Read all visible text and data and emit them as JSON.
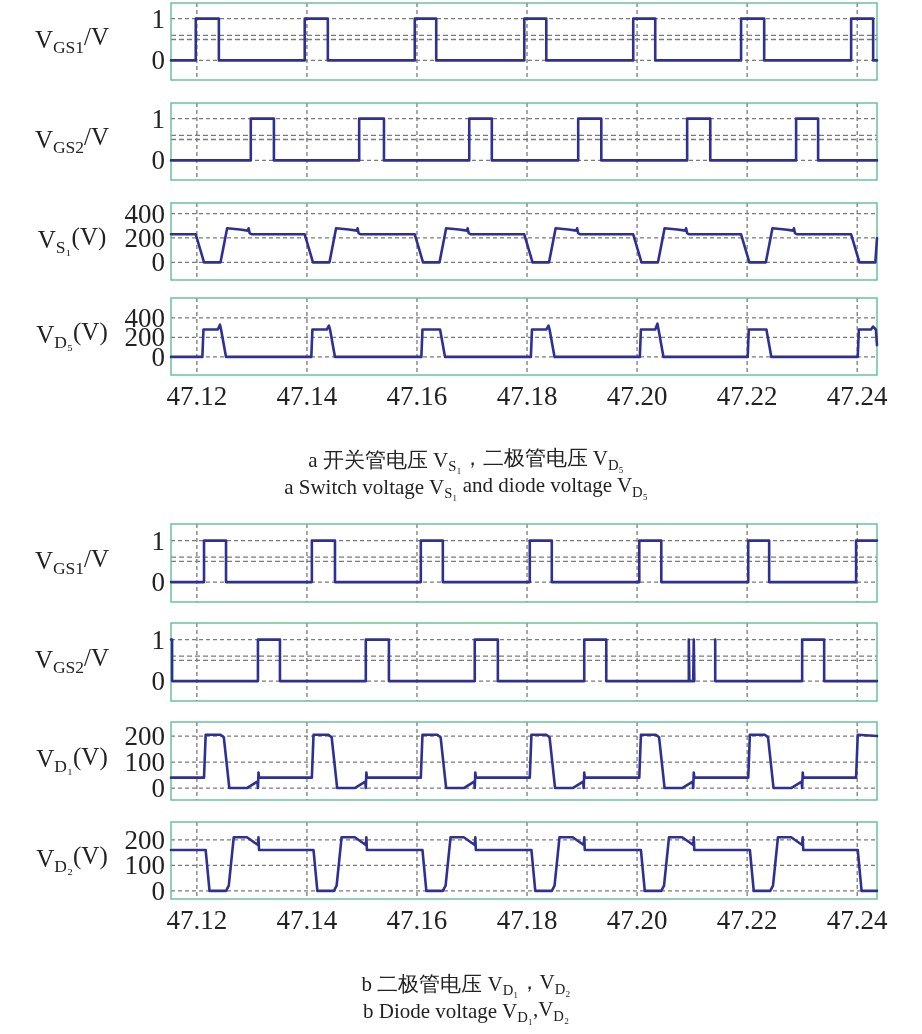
{
  "chart_data": [
    {
      "type": "line",
      "ylabel": "V$_{GS1}$/V",
      "xlim": [
        47.1153,
        47.2436
      ],
      "xticks": [
        47.12,
        47.14,
        47.16,
        47.18,
        47.2,
        47.22,
        47.24
      ],
      "ylim": [
        -0.47,
        1.375
      ],
      "yticks": [
        0,
        1
      ],
      "ref_lines": [
        {
          "axis": "y",
          "value": 0.5,
          "line_style": "dashed"
        },
        {
          "axis": "y",
          "value": 0.6,
          "line_style": "dashed"
        }
      ],
      "grid": true,
      "tick_labels": "y",
      "series": [
        {
          "color": "#2e3192",
          "x": [
            47.1153,
            47.1198,
            47.1198,
            47.124,
            47.124,
            47.1396,
            47.1396,
            47.1438,
            47.1438,
            47.1596,
            47.1596,
            47.1635,
            47.1635,
            47.1795,
            47.1795,
            47.1835,
            47.1835,
            47.1993,
            47.1993,
            47.2033,
            47.2033,
            47.2189,
            47.2189,
            47.2231,
            47.2231,
            47.2389,
            47.2389,
            47.2429,
            47.2429,
            47.2436
          ],
          "values": [
            0,
            0,
            1,
            1,
            0,
            0,
            1,
            1,
            0,
            0,
            1,
            1,
            0,
            0,
            1,
            1,
            0,
            0,
            1,
            1,
            0,
            0,
            1,
            1,
            0,
            0,
            1,
            1,
            0,
            0
          ]
        }
      ]
    },
    {
      "type": "line",
      "ylabel": "V$_{GS2}$/V",
      "xlim": [
        47.1153,
        47.2436
      ],
      "xticks": [
        47.12,
        47.14,
        47.16,
        47.18,
        47.2,
        47.22,
        47.24
      ],
      "ylim": [
        -0.47,
        1.375
      ],
      "yticks": [
        0,
        1
      ],
      "ref_lines": [
        {
          "axis": "y",
          "value": 0.5,
          "line_style": "dashed"
        },
        {
          "axis": "y",
          "value": 0.6,
          "line_style": "dashed"
        }
      ],
      "grid": true,
      "tick_labels": "y",
      "series": [
        {
          "color": "#2e3192",
          "x": [
            47.1153,
            47.1298,
            47.1298,
            47.134,
            47.134,
            47.1495,
            47.1495,
            47.154,
            47.154,
            47.1695,
            47.1695,
            47.1736,
            47.1736,
            47.1893,
            47.1893,
            47.1935,
            47.1935,
            47.2091,
            47.2091,
            47.2133,
            47.2133,
            47.2289,
            47.2289,
            47.2329,
            47.2329,
            47.2436
          ],
          "values": [
            0,
            0,
            1,
            1,
            0,
            0,
            1,
            1,
            0,
            0,
            1,
            1,
            0,
            0,
            1,
            1,
            0,
            0,
            1,
            1,
            0,
            0,
            1,
            1,
            0,
            0
          ]
        }
      ]
    },
    {
      "type": "line",
      "ylabel": "V$_{S₁}$(V)",
      "xlim": [
        47.1153,
        47.2436
      ],
      "xticks": [
        47.12,
        47.14,
        47.16,
        47.18,
        47.2,
        47.22,
        47.24
      ],
      "ylim": [
        -145,
        487
      ],
      "yticks": [
        0,
        200,
        400
      ],
      "grid": true,
      "tick_labels": "y",
      "series": [
        {
          "color": "#2e3192",
          "x": [
            47.1153,
            47.1198,
            47.1213,
            47.1243,
            47.1255,
            47.1278,
            47.1293,
            47.1294,
            47.1296,
            47.13,
            47.1396,
            47.1411,
            47.1441,
            47.1453,
            47.1476,
            47.1491,
            47.1492,
            47.1494,
            47.1498,
            47.1596,
            47.1611,
            47.1641,
            47.1653,
            47.1676,
            47.1691,
            47.1692,
            47.1694,
            47.1698,
            47.1795,
            47.181,
            47.184,
            47.1852,
            47.1875,
            47.189,
            47.1891,
            47.1893,
            47.1897,
            47.1993,
            47.2008,
            47.2038,
            47.205,
            47.2073,
            47.2088,
            47.2089,
            47.2091,
            47.2095,
            47.2189,
            47.2204,
            47.2234,
            47.2246,
            47.2269,
            47.2284,
            47.2285,
            47.2287,
            47.2291,
            47.2389,
            47.2404,
            47.2433,
            47.2436
          ],
          "values": [
            230,
            230,
            0,
            0,
            280,
            270,
            260,
            280,
            240,
            230,
            230,
            0,
            0,
            280,
            270,
            260,
            280,
            240,
            230,
            230,
            0,
            0,
            280,
            270,
            260,
            280,
            240,
            230,
            230,
            0,
            0,
            280,
            270,
            260,
            280,
            240,
            230,
            230,
            0,
            0,
            280,
            270,
            260,
            280,
            240,
            230,
            230,
            0,
            0,
            280,
            270,
            260,
            280,
            240,
            230,
            230,
            0,
            0,
            200
          ]
        }
      ]
    },
    {
      "type": "line",
      "ylabel": "V$_{D₅}$(V)",
      "xlim": [
        47.1153,
        47.2436
      ],
      "xticks": [
        47.12,
        47.14,
        47.16,
        47.18,
        {
          "value": 47.2,
          "label": "47.20"
        },
        47.22,
        47.24
      ],
      "ylim": [
        -185,
        603
      ],
      "yticks": [
        0,
        200,
        400
      ],
      "grid": true,
      "annotations": [
        "a  开关管电压 V$_{S₁}$，二极管电压 V$_{D₅}$",
        "a  Switch voltage V$_{S₁}$ and diode voltage V$_{D₅}$"
      ],
      "series": [
        {
          "color": "#2e3192",
          "x": [
            47.1153,
            47.121,
            47.1212,
            47.1238,
            47.1242,
            47.1244,
            47.1253,
            47.1408,
            47.141,
            47.1436,
            47.144,
            47.1442,
            47.1451,
            47.1608,
            47.161,
            47.1636,
            47.164,
            47.1642,
            47.1651,
            47.1807,
            47.1809,
            47.1835,
            47.1839,
            47.1841,
            47.185,
            47.2005,
            47.2007,
            47.2033,
            47.2037,
            47.2039,
            47.2048,
            47.2201,
            47.2203,
            47.2229,
            47.2233,
            47.2235,
            47.2244,
            47.2401,
            47.2403,
            47.2425,
            47.2429,
            47.2434,
            47.2436
          ],
          "values": [
            0,
            0,
            280,
            280,
            330,
            280,
            0,
            0,
            280,
            280,
            320,
            280,
            0,
            0,
            280,
            280,
            280,
            280,
            0,
            0,
            280,
            280,
            320,
            280,
            0,
            0,
            280,
            280,
            340,
            280,
            0,
            0,
            280,
            280,
            280,
            280,
            0,
            0,
            280,
            280,
            310,
            280,
            120
          ]
        }
      ]
    },
    {
      "type": "line",
      "ylabel": "V$_{GS1}$/V",
      "xlim": [
        47.1153,
        47.2436
      ],
      "xticks": [
        47.12,
        47.14,
        47.16,
        47.18,
        47.2,
        47.22,
        47.24
      ],
      "ylim": [
        -0.48,
        1.4
      ],
      "yticks": [
        0,
        1
      ],
      "ref_lines": [
        {
          "axis": "y",
          "value": 0.5,
          "line_style": "dashed"
        },
        {
          "axis": "y",
          "value": 0.6,
          "line_style": "dashed"
        }
      ],
      "grid": true,
      "tick_labels": "y",
      "series": [
        {
          "color": "#2e3192",
          "x": [
            47.1153,
            47.1213,
            47.1213,
            47.1253,
            47.1253,
            47.1409,
            47.1409,
            47.1451,
            47.1451,
            47.1607,
            47.1607,
            47.1647,
            47.1647,
            47.1805,
            47.1805,
            47.1845,
            47.1845,
            47.2004,
            47.2004,
            47.2044,
            47.2044,
            47.2202,
            47.2202,
            47.224,
            47.224,
            47.2398,
            47.2398,
            47.2436
          ],
          "values": [
            0,
            0,
            1,
            1,
            0,
            0,
            1,
            1,
            0,
            0,
            1,
            1,
            0,
            0,
            1,
            1,
            0,
            0,
            1,
            1,
            0,
            0,
            1,
            1,
            0,
            0,
            1,
            1
          ]
        }
      ]
    },
    {
      "type": "line",
      "ylabel": "V$_{GS2}$/V",
      "xlim": [
        47.1153,
        47.2436
      ],
      "xticks": [
        47.12,
        47.14,
        47.16,
        47.18,
        47.2,
        47.22,
        47.24
      ],
      "ylim": [
        -0.48,
        1.4
      ],
      "yticks": [
        0,
        1
      ],
      "ref_lines": [
        {
          "axis": "y",
          "value": 0.5,
          "line_style": "dashed"
        },
        {
          "axis": "y",
          "value": 0.6,
          "line_style": "dashed"
        }
      ],
      "grid": true,
      "tick_labels": "y",
      "series": [
        {
          "color": "#2e3192",
          "x": [
            47.1153,
            47.1155,
            47.1155,
            47.1311,
            47.1311,
            47.1351,
            47.1351,
            47.1507,
            47.1507,
            47.1549,
            47.1549,
            47.1705,
            47.1705,
            47.1747,
            47.1747,
            47.1904,
            47.1904,
            47.1944,
            47.1944,
            47.2094,
            47.2094,
            47.2095,
            47.2102,
            47.2103,
            47.2104,
            47.2123,
            47.2142,
            47.2142,
            47.23,
            47.23,
            47.234,
            47.234,
            47.2436
          ],
          "values": [
            1,
            1,
            0,
            0,
            1,
            1,
            0,
            0,
            1,
            1,
            0,
            0,
            1,
            1,
            0,
            0,
            1,
            1,
            0,
            0,
            1,
            0,
            0,
            1,
            0,
            null,
            1,
            0,
            0,
            1,
            1,
            0,
            0
          ]
        }
      ]
    },
    {
      "type": "line",
      "ylabel": "V$_{D₁}$(V)",
      "xlim": [
        47.1153,
        47.2436
      ],
      "xticks": [
        47.12,
        47.14,
        47.16,
        47.18,
        47.2,
        47.22,
        47.24
      ],
      "ylim": [
        -46,
        254
      ],
      "yticks": [
        0,
        100,
        200
      ],
      "grid": true,
      "tick_labels": "y",
      "series": [
        {
          "color": "#2e3192",
          "x": [
            47.1153,
            47.1213,
            47.1216,
            47.1243,
            47.1249,
            47.1259,
            47.1291,
            47.131,
            47.1311,
            47.1312,
            47.1313,
            47.1409,
            47.1412,
            47.1439,
            47.1445,
            47.1455,
            47.1487,
            47.1506,
            47.1507,
            47.1508,
            47.1509,
            47.1607,
            47.161,
            47.1637,
            47.1643,
            47.1653,
            47.1685,
            47.1704,
            47.1705,
            47.1706,
            47.1707,
            47.1805,
            47.1808,
            47.1835,
            47.1841,
            47.1851,
            47.1883,
            47.1902,
            47.1903,
            47.1904,
            47.1905,
            47.2004,
            47.2007,
            47.2034,
            47.204,
            47.205,
            47.2082,
            47.2101,
            47.2102,
            47.2103,
            47.2104,
            47.2202,
            47.2205,
            47.2232,
            47.2238,
            47.2248,
            47.228,
            47.2299,
            47.23,
            47.2301,
            47.2302,
            47.2398,
            47.2401,
            47.2436
          ],
          "values": [
            40,
            40,
            205,
            205,
            195,
            0,
            0,
            25,
            0,
            60,
            40,
            40,
            205,
            205,
            195,
            0,
            0,
            25,
            0,
            60,
            40,
            40,
            205,
            205,
            195,
            0,
            0,
            25,
            0,
            60,
            40,
            40,
            205,
            205,
            195,
            0,
            0,
            25,
            0,
            60,
            40,
            40,
            205,
            205,
            195,
            0,
            0,
            25,
            0,
            60,
            40,
            40,
            205,
            205,
            195,
            0,
            0,
            25,
            0,
            60,
            40,
            40,
            205,
            200
          ]
        }
      ]
    },
    {
      "type": "line",
      "ylabel": "V$_{D₂}$(V)",
      "xlim": [
        47.1153,
        47.2436
      ],
      "xticks": [
        47.12,
        47.14,
        47.16,
        47.18,
        {
          "value": 47.2,
          "label": "47.20"
        },
        47.22,
        47.24
      ],
      "ylim": [
        -32,
        270
      ],
      "yticks": [
        0,
        100,
        200
      ],
      "grid": true,
      "annotations": [
        "b  二极管电压 V$_{D₁}$，V$_{D₂}$",
        "b  Diode voltage V$_{D₁}$,V$_{D₂}$"
      ],
      "series": [
        {
          "color": "#2e3192",
          "x": [
            47.1153,
            47.1216,
            47.1223,
            47.1253,
            47.1258,
            47.1267,
            47.1291,
            47.1311,
            47.1312,
            47.1313,
            47.1412,
            47.1419,
            47.1449,
            47.1454,
            47.1463,
            47.1487,
            47.1507,
            47.1508,
            47.1509,
            47.161,
            47.1617,
            47.1647,
            47.1652,
            47.1661,
            47.1685,
            47.1705,
            47.1706,
            47.1707,
            47.1808,
            47.1815,
            47.1845,
            47.185,
            47.1859,
            47.1883,
            47.1903,
            47.1904,
            47.1905,
            47.2007,
            47.2014,
            47.2044,
            47.2049,
            47.2058,
            47.2082,
            47.2102,
            47.2103,
            47.2104,
            47.2205,
            47.2212,
            47.2242,
            47.2247,
            47.2256,
            47.228,
            47.23,
            47.2301,
            47.2302,
            47.2401,
            47.2408,
            47.243,
            47.2436
          ],
          "values": [
            160,
            160,
            0,
            0,
            20,
            210,
            210,
            180,
            210,
            160,
            160,
            0,
            0,
            20,
            210,
            210,
            180,
            210,
            160,
            160,
            0,
            0,
            20,
            210,
            210,
            180,
            210,
            160,
            160,
            0,
            0,
            20,
            210,
            210,
            180,
            210,
            160,
            160,
            0,
            0,
            20,
            210,
            210,
            180,
            210,
            160,
            160,
            0,
            0,
            20,
            210,
            210,
            180,
            210,
            160,
            160,
            0,
            0,
            0
          ]
        }
      ]
    }
  ]
}
